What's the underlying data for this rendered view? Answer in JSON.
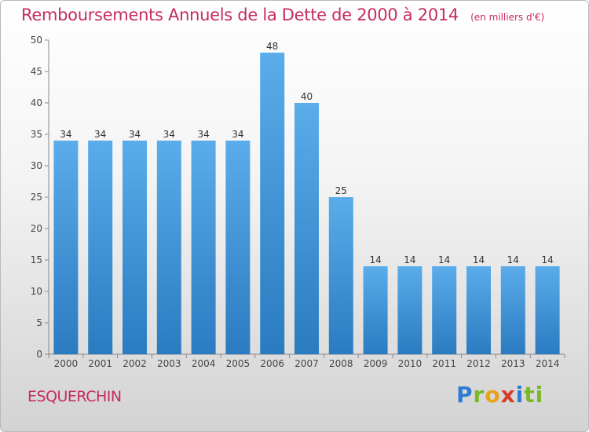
{
  "chart_data": {
    "type": "bar",
    "title": "Remboursements Annuels de la Dette de 2000 à 2014",
    "unit": "(en milliers d'€)",
    "categories": [
      "2000",
      "2001",
      "2002",
      "2003",
      "2004",
      "2005",
      "2006",
      "2007",
      "2008",
      "2009",
      "2010",
      "2011",
      "2012",
      "2013",
      "2014"
    ],
    "values": [
      34,
      34,
      34,
      34,
      34,
      34,
      48,
      40,
      25,
      14,
      14,
      14,
      14,
      14,
      14
    ],
    "ylim": [
      0,
      50
    ],
    "yticks": [
      0,
      5,
      10,
      15,
      20,
      25,
      30,
      35,
      40,
      45,
      50
    ],
    "grid": false,
    "bar_color_top": "#5aacea",
    "bar_color_bottom": "#2a7bc0"
  },
  "footer": {
    "commune": "ESQUERCHIN",
    "brand": "Proxiti"
  },
  "colors": {
    "title": "#c52b62",
    "axis": "#888888"
  }
}
